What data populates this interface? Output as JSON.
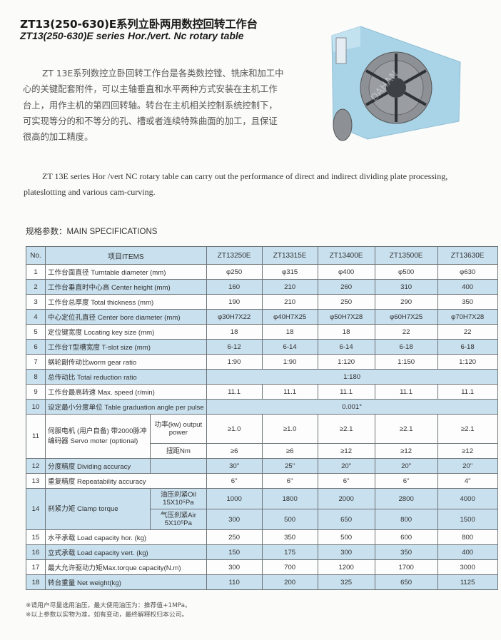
{
  "header": {
    "title_cn": "ZT13(250-630)E系列立卧两用数控回转工作台",
    "title_en": "ZT13(250-630)E series Hor./vert. Nc rotary table"
  },
  "intro": {
    "cn": "ZT 13E系列数控立卧回转工作台是各类数控镗、铣床和加工中心的关键配套附件，可以主轴垂直和水平两种方式安装在主机工作台上，用作主机的第四回转轴。转台在主机相关控制系统控制下，可实现等分的和不等分的孔、槽或者连续特殊曲面的加工，且保证很高的加工精度。",
    "en": "ZT 13E series Hor /vert NC rotary table can carry out the performance of direct and indirect dividing  plate processing, plateslotting and various cam-curving."
  },
  "product_image": {
    "watermark": "DAHAN",
    "body_color": "#a9d3e6",
    "disc_color": "#8d9196"
  },
  "specs": {
    "heading": "规格参数：MAIN SPECIFICATIONS",
    "col_no": "No.",
    "col_items": "项目ITEMS",
    "models": [
      "ZT13250E",
      "ZT13315E",
      "ZT13400E",
      "ZT13500E",
      "ZT13630E"
    ],
    "rows": [
      {
        "no": "1",
        "label": "工作台面直径  Turntable diameter (mm)",
        "values": [
          "φ250",
          "φ315",
          "φ400",
          "φ500",
          "φ630"
        ]
      },
      {
        "no": "2",
        "label": "工作台垂直时中心高  Center height (mm)",
        "values": [
          "160",
          "210",
          "260",
          "310",
          "400"
        ]
      },
      {
        "no": "3",
        "label": "工作台总厚度  Total thickness (mm)",
        "values": [
          "190",
          "210",
          "250",
          "290",
          "350"
        ]
      },
      {
        "no": "4",
        "label": "中心定位孔直径  Center bore diameter (mm)",
        "values": [
          "φ30H7X22",
          "φ40H7X25",
          "φ50H7X28",
          "φ60H7X25",
          "φ70H7X28"
        ]
      },
      {
        "no": "5",
        "label": "定位键宽度  Locating key size (mm)",
        "values": [
          "18",
          "18",
          "18",
          "22",
          "22"
        ]
      },
      {
        "no": "6",
        "label": "工作台T型槽宽度  T-slot size (mm)",
        "values": [
          "6-12",
          "6-14",
          "6-14",
          "6-18",
          "6-18"
        ]
      },
      {
        "no": "7",
        "label": "蜗轮副传动比worm gear ratio",
        "values": [
          "1:90",
          "1:90",
          "1:120",
          "1:150",
          "1:120"
        ]
      },
      {
        "no": "8",
        "label": "总传动比  Total reduction ratio",
        "merged": "1:180"
      },
      {
        "no": "9",
        "label": "工作台最高转速  Max. speed  (r/min)",
        "values": [
          "11.1",
          "11.1",
          "11.1",
          "11.1",
          "11.1"
        ]
      },
      {
        "no": "10",
        "label": "设定最小分度单位 Table graduation angle per pulse",
        "merged": "0.001°"
      },
      {
        "no": "11",
        "label": "伺服电机 (用户自备) 带2000脉冲编码器 Servo moter (optional)",
        "subs": [
          {
            "sub": "功率(kw) output power",
            "values": [
              "≥1.0",
              "≥1.0",
              "≥2.1",
              "≥2.1",
              "≥2.1"
            ]
          },
          {
            "sub": "扭距Nm",
            "values": [
              "≥6",
              "≥6",
              "≥12",
              "≥12",
              "≥12"
            ]
          }
        ]
      },
      {
        "no": "12",
        "label": "分度精度  Dividing accuracy",
        "blank_sub": true,
        "values": [
          "30\"",
          "25\"",
          "20\"",
          "20\"",
          "20\""
        ]
      },
      {
        "no": "13",
        "label": "重复精度  Repeatability accuracy",
        "values": [
          "6\"",
          "6\"",
          "6\"",
          "6\"",
          "4\""
        ]
      },
      {
        "no": "14",
        "label": "刹紧力矩  Clamp torque",
        "subs": [
          {
            "sub": "油压刹紧Oil 15X10⁵Pa",
            "values": [
              "1000",
              "1800",
              "2000",
              "2800",
              "4000"
            ]
          },
          {
            "sub": "气压刹紧Air 5X10⁵Pa",
            "values": [
              "300",
              "500",
              "650",
              "800",
              "1500"
            ]
          }
        ]
      },
      {
        "no": "15",
        "label": "水平承载  Load capacity hor.  (kg)",
        "values": [
          "250",
          "350",
          "500",
          "600",
          "800"
        ]
      },
      {
        "no": "16",
        "label": "立式承载  Load capacity vert.  (kg)",
        "values": [
          "150",
          "175",
          "300",
          "350",
          "400"
        ]
      },
      {
        "no": "17",
        "label": "最大允许驱动力矩Max.torque capacity(N.m)",
        "values": [
          "300",
          "700",
          "1200",
          "1700",
          "3000"
        ]
      },
      {
        "no": "18",
        "label": "转台重量  Net weight(kg)",
        "values": [
          "110",
          "200",
          "325",
          "650",
          "1125"
        ]
      }
    ]
  },
  "notes": [
    "※请用户尽量选用油压，最大使用油压为：推荐值+1MPa。",
    "※以上参数以实物为准，如有变动，最终解释权归本公司。"
  ]
}
